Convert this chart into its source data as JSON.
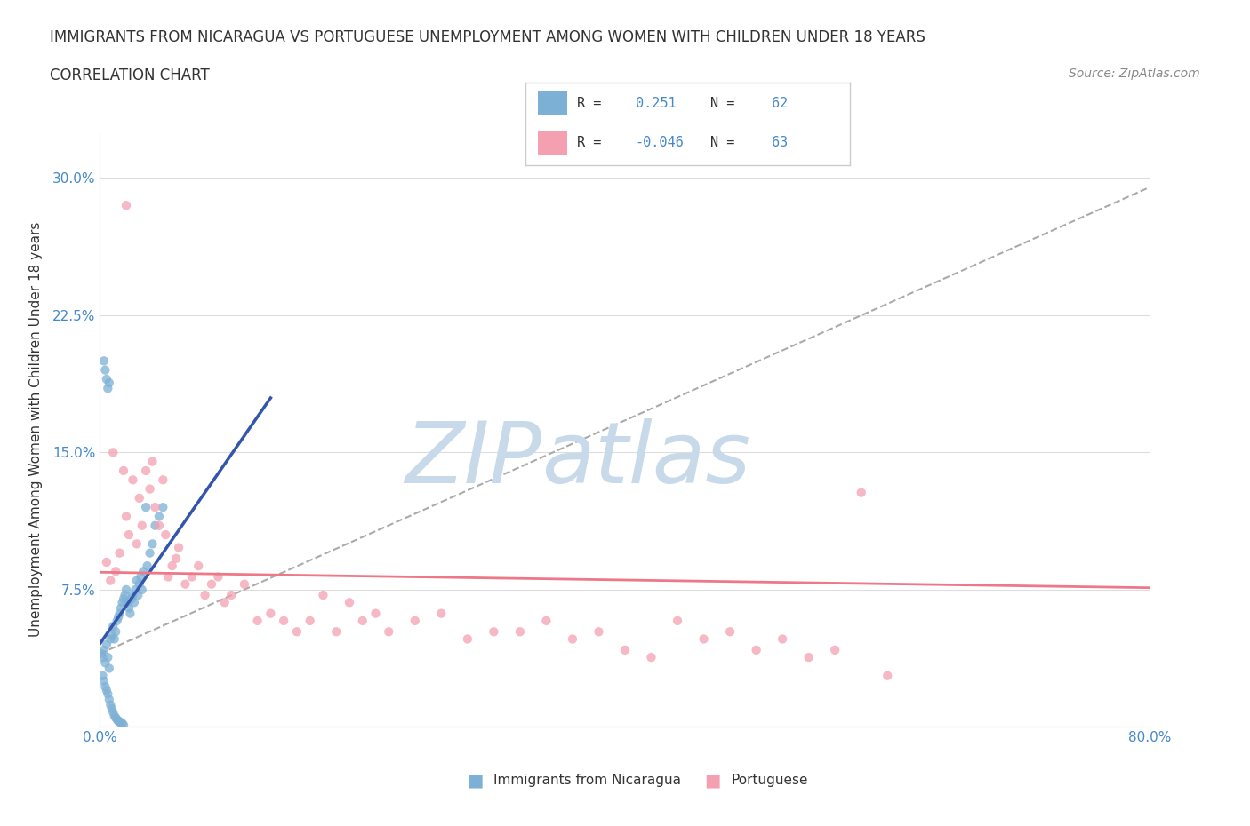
{
  "title_line1": "IMMIGRANTS FROM NICARAGUA VS PORTUGUESE UNEMPLOYMENT AMONG WOMEN WITH CHILDREN UNDER 18 YEARS",
  "title_line2": "CORRELATION CHART",
  "source_text": "Source: ZipAtlas.com",
  "ylabel": "Unemployment Among Women with Children Under 18 years",
  "xlim": [
    0.0,
    0.8
  ],
  "ylim": [
    0.0,
    0.325
  ],
  "yticks": [
    0.0,
    0.075,
    0.15,
    0.225,
    0.3
  ],
  "yticklabels": [
    "",
    "7.5%",
    "15.0%",
    "22.5%",
    "30.0%"
  ],
  "grid_color": "#dddddd",
  "blue_color": "#7db0d5",
  "pink_color": "#f4a0b0",
  "blue_line_color": "#3355aa",
  "pink_line_color": "#ee7788",
  "watermark_zip_color": "#c8daea",
  "watermark_atlas_color": "#c8daea",
  "legend1_label": "Immigrants from Nicaragua",
  "legend2_label": "Portuguese",
  "R_blue": 0.251,
  "N_blue": 62,
  "R_pink": -0.046,
  "N_pink": 63,
  "blue_scatter_x": [
    0.001,
    0.002,
    0.003,
    0.004,
    0.005,
    0.006,
    0.007,
    0.008,
    0.009,
    0.01,
    0.011,
    0.012,
    0.013,
    0.014,
    0.015,
    0.016,
    0.017,
    0.018,
    0.019,
    0.02,
    0.021,
    0.022,
    0.023,
    0.024,
    0.025,
    0.026,
    0.027,
    0.028,
    0.029,
    0.03,
    0.031,
    0.032,
    0.033,
    0.035,
    0.036,
    0.038,
    0.04,
    0.042,
    0.045,
    0.048,
    0.002,
    0.003,
    0.004,
    0.005,
    0.006,
    0.007,
    0.008,
    0.009,
    0.01,
    0.011,
    0.012,
    0.013,
    0.014,
    0.015,
    0.016,
    0.017,
    0.018,
    0.003,
    0.004,
    0.005,
    0.006,
    0.007
  ],
  "blue_scatter_y": [
    0.04,
    0.038,
    0.042,
    0.035,
    0.045,
    0.038,
    0.032,
    0.048,
    0.05,
    0.055,
    0.048,
    0.052,
    0.058,
    0.06,
    0.062,
    0.065,
    0.068,
    0.07,
    0.072,
    0.075,
    0.068,
    0.065,
    0.062,
    0.07,
    0.072,
    0.068,
    0.075,
    0.08,
    0.072,
    0.078,
    0.082,
    0.075,
    0.085,
    0.12,
    0.088,
    0.095,
    0.1,
    0.11,
    0.115,
    0.12,
    0.028,
    0.025,
    0.022,
    0.02,
    0.018,
    0.015,
    0.012,
    0.01,
    0.008,
    0.006,
    0.005,
    0.004,
    0.003,
    0.003,
    0.002,
    0.002,
    0.001,
    0.2,
    0.195,
    0.19,
    0.185,
    0.188
  ],
  "pink_scatter_x": [
    0.005,
    0.008,
    0.01,
    0.012,
    0.015,
    0.018,
    0.02,
    0.022,
    0.025,
    0.028,
    0.03,
    0.032,
    0.035,
    0.038,
    0.04,
    0.042,
    0.045,
    0.048,
    0.05,
    0.052,
    0.055,
    0.058,
    0.06,
    0.065,
    0.07,
    0.075,
    0.08,
    0.085,
    0.09,
    0.095,
    0.1,
    0.11,
    0.12,
    0.13,
    0.14,
    0.15,
    0.16,
    0.17,
    0.18,
    0.19,
    0.2,
    0.21,
    0.22,
    0.24,
    0.26,
    0.28,
    0.3,
    0.32,
    0.34,
    0.36,
    0.38,
    0.4,
    0.42,
    0.44,
    0.46,
    0.48,
    0.5,
    0.52,
    0.54,
    0.56,
    0.58,
    0.6,
    0.02
  ],
  "pink_scatter_y": [
    0.09,
    0.08,
    0.15,
    0.085,
    0.095,
    0.14,
    0.115,
    0.105,
    0.135,
    0.1,
    0.125,
    0.11,
    0.14,
    0.13,
    0.145,
    0.12,
    0.11,
    0.135,
    0.105,
    0.082,
    0.088,
    0.092,
    0.098,
    0.078,
    0.082,
    0.088,
    0.072,
    0.078,
    0.082,
    0.068,
    0.072,
    0.078,
    0.058,
    0.062,
    0.058,
    0.052,
    0.058,
    0.072,
    0.052,
    0.068,
    0.058,
    0.062,
    0.052,
    0.058,
    0.062,
    0.048,
    0.052,
    0.052,
    0.058,
    0.048,
    0.052,
    0.042,
    0.038,
    0.058,
    0.048,
    0.052,
    0.042,
    0.048,
    0.038,
    0.042,
    0.128,
    0.028,
    0.285
  ]
}
